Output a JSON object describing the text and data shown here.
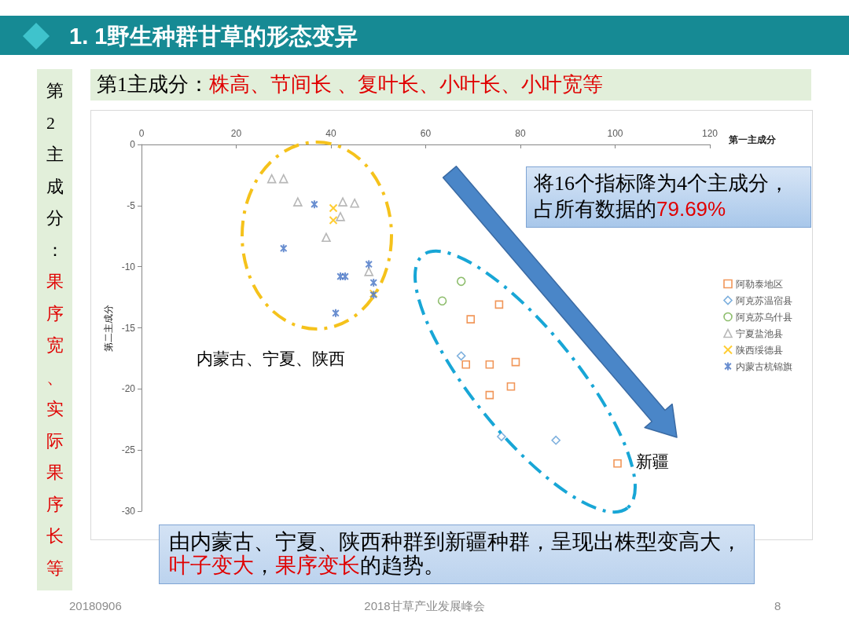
{
  "chart_data": {
    "type": "scatter",
    "title": "1. 1野生种群甘草的形态变异",
    "xlabel": "第一主成分",
    "ylabel": "第二主成分",
    "annotations": [
      "第1主成分：",
      "株高、节间长 、复叶长、小叶长、小叶宽等",
      "第2主成分：",
      "果序宽、实际果序长等",
      "将16个指标降为4个主成分，",
      "占所有数据的",
      "79.69%",
      "由内蒙古、宁夏、陕西种群到新疆种群，呈现出株型变高大，",
      "叶子变大",
      "，",
      "果序变长",
      "的趋势。",
      "内蒙古、宁夏、陕西",
      "新疆",
      "20180906",
      "2018甘草产业发展峰会",
      "8"
    ],
    "xlim": [
      0,
      120
    ],
    "xticks": [
      0,
      20,
      40,
      60,
      80,
      100,
      120
    ],
    "ylim": [
      -30,
      0
    ],
    "yticks": [
      -30,
      -25,
      -20,
      -15,
      -10,
      -5,
      0
    ],
    "legend": "right",
    "series": [
      {
        "name": "阿勒泰地区",
        "color": "#ed7d31",
        "marker": "square",
        "x": [
          75.5,
          69.5,
          68.5,
          73.5,
          79,
          78,
          73.5,
          100.5
        ],
        "values": [
          -13.1,
          -14.3,
          -18.0,
          -18.0,
          -17.8,
          -19.8,
          -20.5,
          -26.1
        ]
      },
      {
        "name": "阿克苏温宿县",
        "color": "#5b9bd5",
        "marker": "diamond",
        "x": [
          67.5,
          76,
          87.5
        ],
        "values": [
          -17.3,
          -23.9,
          -24.2
        ]
      },
      {
        "name": "阿克苏乌什县",
        "color": "#70ad47",
        "marker": "circle",
        "x": [
          67.5,
          63.5
        ],
        "values": [
          -11.2,
          -12.8
        ]
      },
      {
        "name": "宁夏盐池县",
        "color": "#a5a5a5",
        "marker": "triangle",
        "x": [
          27.5,
          30,
          33,
          42.5,
          45,
          42,
          39,
          48
        ],
        "values": [
          -2.8,
          -2.8,
          -4.7,
          -4.7,
          -4.8,
          -5.9,
          -7.6,
          -10.4
        ]
      },
      {
        "name": "陕西绥德县",
        "color": "#ffc000",
        "marker": "cross",
        "x": [
          40.5,
          40.5,
          49
        ],
        "values": [
          -5.2,
          -6.2,
          -12.2
        ]
      },
      {
        "name": "内蒙古杭锦旗",
        "color": "#4472c4",
        "x": [
          36.5,
          30,
          48,
          42,
          43,
          49,
          49,
          41
        ],
        "values": [
          -4.9,
          -8.5,
          -9.8,
          -10.8,
          -10.8,
          -11.3,
          -12.3,
          -13.8
        ]
      }
    ]
  }
}
